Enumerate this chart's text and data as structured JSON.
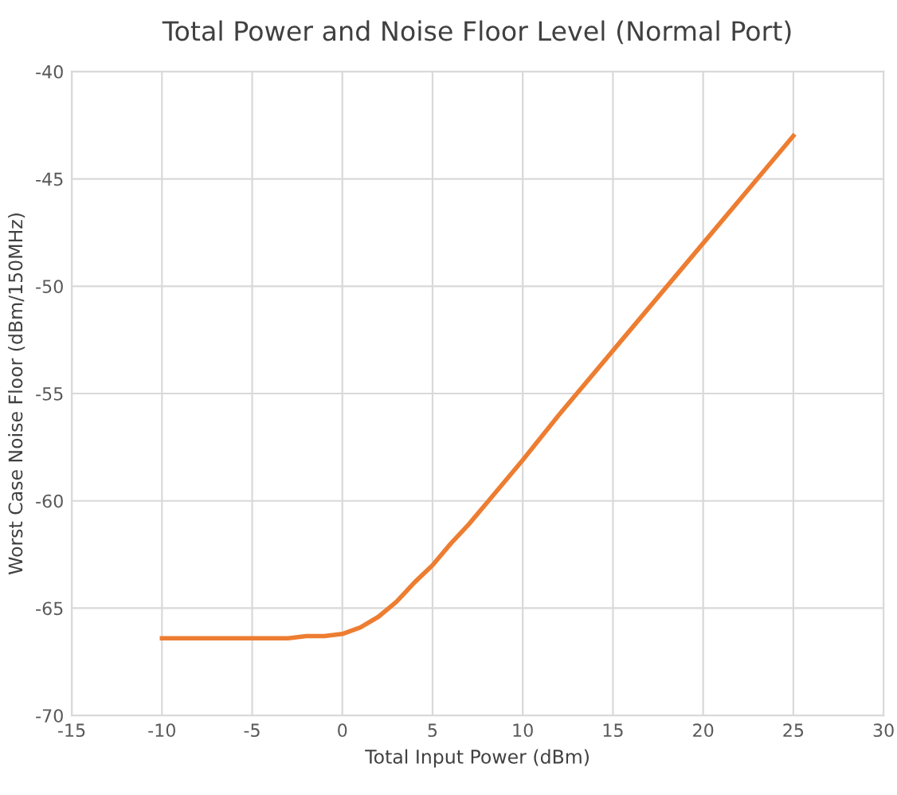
{
  "chart_data": {
    "type": "line",
    "title": "Total Power and Noise Floor Level (Normal Port)",
    "xlabel": "Total Input Power (dBm)",
    "ylabel": "Worst Case Noise Floor (dBm/150MHz)",
    "x": [
      -10,
      -8,
      -6,
      -4,
      -3,
      -2,
      -1,
      0,
      1,
      2,
      3,
      4,
      5,
      6,
      7,
      8,
      10,
      12,
      15,
      20,
      25
    ],
    "series": [
      {
        "color": "#ed7d31",
        "values": [
          -66.4,
          -66.4,
          -66.4,
          -66.4,
          -66.4,
          -66.3,
          -66.3,
          -66.2,
          -65.9,
          -65.4,
          -64.7,
          -63.8,
          -63.0,
          -62.0,
          -61.1,
          -60.1,
          -58.1,
          -56.0,
          -53.0,
          -48.0,
          -43.0
        ]
      }
    ],
    "xlim": [
      -15,
      30
    ],
    "xticks": [
      -15,
      -10,
      -5,
      0,
      5,
      10,
      15,
      20,
      25,
      30
    ],
    "ylim": [
      -70,
      -40
    ],
    "yticks": [
      -70,
      -65,
      -60,
      -55,
      -50,
      -45,
      -40
    ],
    "grid": true
  }
}
